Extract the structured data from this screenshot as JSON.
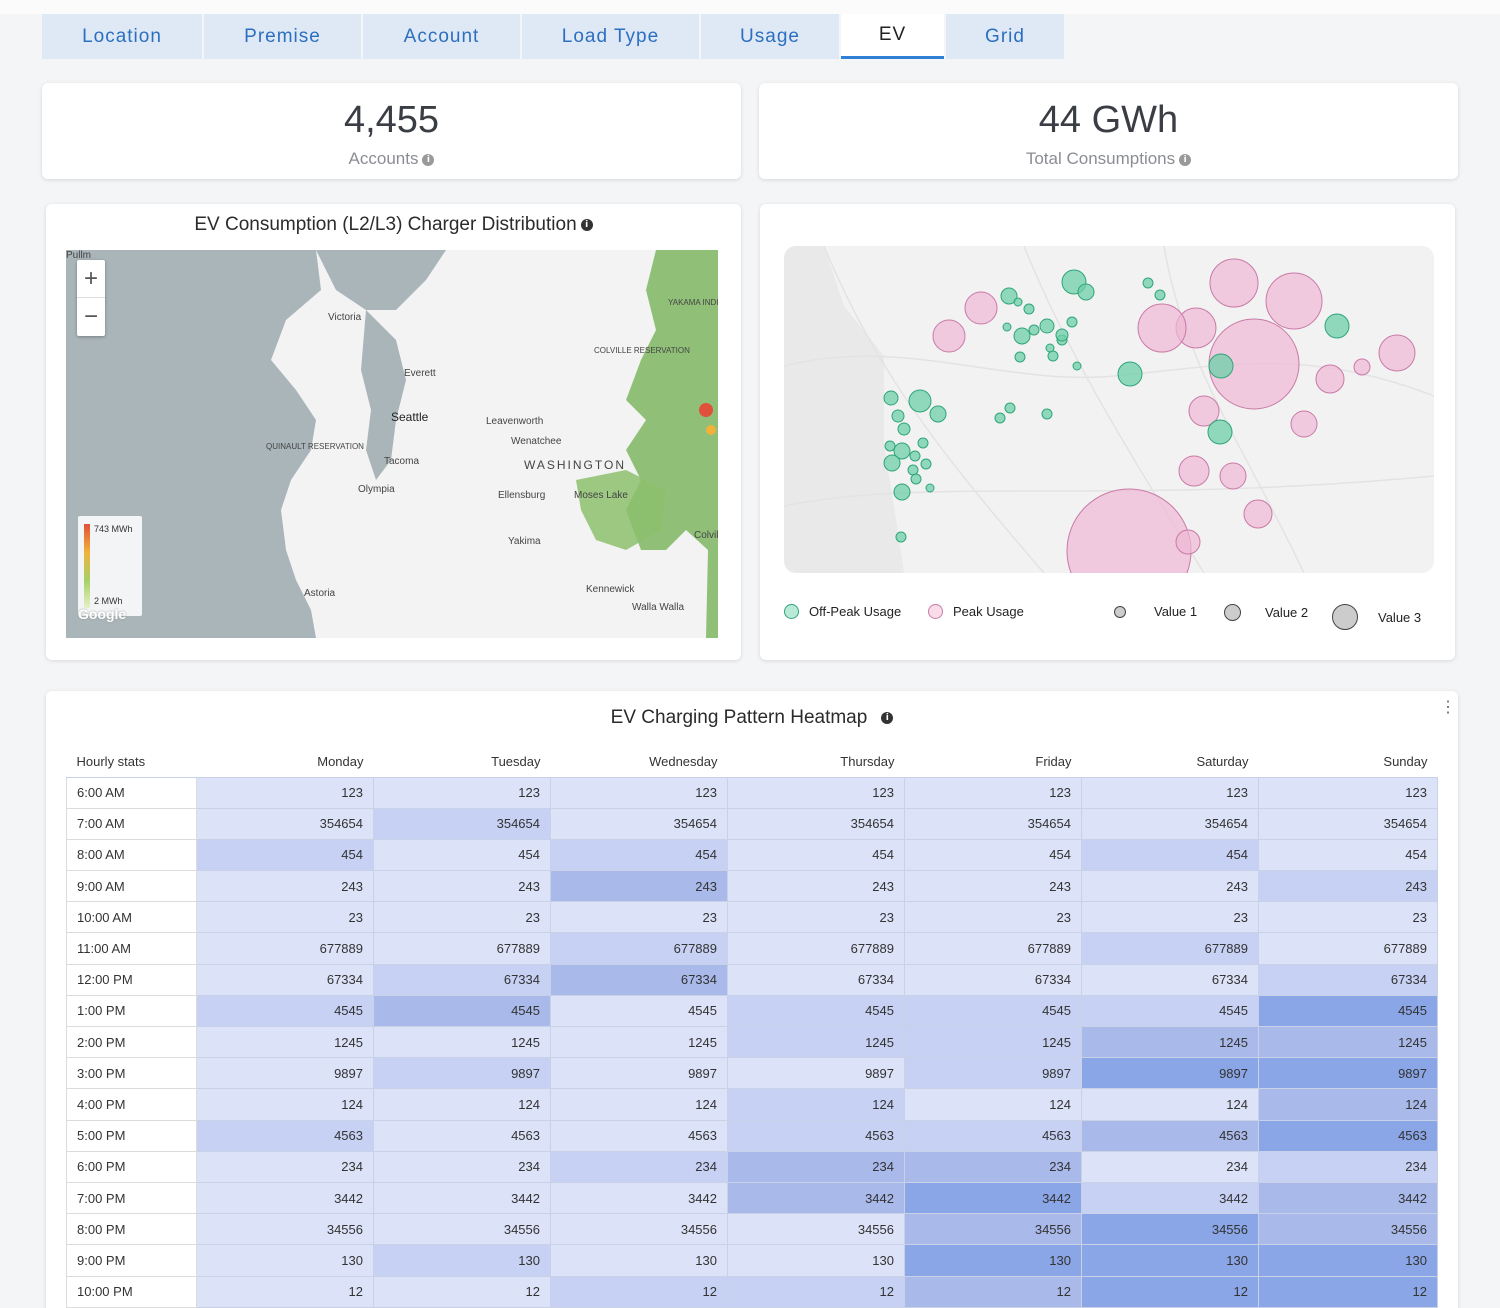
{
  "tabs": [
    {
      "label": "Location",
      "width": 160
    },
    {
      "label": "Premise",
      "width": 157
    },
    {
      "label": "Account",
      "width": 157
    },
    {
      "label": "Load Type",
      "width": 177
    },
    {
      "label": "Usage",
      "width": 138
    },
    {
      "label": "EV",
      "width": 103,
      "active": true
    },
    {
      "label": "Grid",
      "width": 118
    }
  ],
  "kpis": {
    "accounts": {
      "value": "4,455",
      "label": "Accounts"
    },
    "consumption": {
      "value": "44 GWh",
      "label": "Total Consumptions"
    }
  },
  "distribution": {
    "title": "EV Consumption (L2/L3) Charger Distribution",
    "legend_max": "743 MWh",
    "legend_min": "2 MWh",
    "attribution": "Google",
    "places": [
      "Victoria",
      "Everett",
      "Seattle",
      "Tacoma",
      "Olympia",
      "Leavenworth",
      "Wenatchee",
      "WASHINGTON",
      "Ellensburg",
      "Moses Lake",
      "Yakima",
      "Kennewick",
      "Walla Walla",
      "Astoria",
      "QUINAULT RESERVATION",
      "COLVILLE RESERVATION",
      "YAKAMA INDIAN RESERVATION",
      "Colville",
      "Pullm"
    ]
  },
  "bubbles": {
    "legend": {
      "offpeak": "Off-Peak Usage",
      "peak": "Peak Usage",
      "v1": "Value 1",
      "v2": "Value 2",
      "v3": "Value 3"
    },
    "colors": {
      "offpeak": "#6fcfa8",
      "offpeak_stroke": "#2ea57a",
      "peak": "#f0b8d6",
      "peak_stroke": "#c97aa6"
    }
  },
  "heatmap": {
    "title": "EV Charging Pattern Heatmap",
    "corner": "Hourly stats",
    "days": [
      "Monday",
      "Tuesday",
      "Wednesday",
      "Thursday",
      "Friday",
      "Saturday",
      "Sunday"
    ],
    "rows": [
      {
        "hour": "6:00 AM",
        "values": [
          123,
          123,
          123,
          123,
          123,
          123,
          123
        ],
        "levels": [
          1,
          1,
          1,
          1,
          1,
          1,
          1
        ]
      },
      {
        "hour": "7:00 AM",
        "values": [
          354654,
          354654,
          354654,
          354654,
          354654,
          354654,
          354654
        ],
        "levels": [
          1,
          2,
          1,
          1,
          1,
          1,
          1
        ]
      },
      {
        "hour": "8:00 AM",
        "values": [
          454,
          454,
          454,
          454,
          454,
          454,
          454
        ],
        "levels": [
          2,
          1,
          2,
          1,
          1,
          2,
          1
        ]
      },
      {
        "hour": "9:00 AM",
        "values": [
          243,
          243,
          243,
          243,
          243,
          243,
          243
        ],
        "levels": [
          1,
          1,
          3,
          1,
          1,
          1,
          2
        ]
      },
      {
        "hour": "10:00 AM",
        "values": [
          23,
          23,
          23,
          23,
          23,
          23,
          23
        ],
        "levels": [
          1,
          1,
          1,
          1,
          1,
          1,
          1
        ]
      },
      {
        "hour": "11:00 AM",
        "values": [
          677889,
          677889,
          677889,
          677889,
          677889,
          677889,
          677889
        ],
        "levels": [
          1,
          1,
          2,
          1,
          1,
          2,
          1
        ]
      },
      {
        "hour": "12:00 PM",
        "values": [
          67334,
          67334,
          67334,
          67334,
          67334,
          67334,
          67334
        ],
        "levels": [
          1,
          2,
          3,
          1,
          1,
          1,
          2
        ]
      },
      {
        "hour": "1:00 PM",
        "values": [
          4545,
          4545,
          4545,
          4545,
          4545,
          4545,
          4545
        ],
        "levels": [
          2,
          3,
          1,
          2,
          2,
          2,
          4
        ]
      },
      {
        "hour": "2:00 PM",
        "values": [
          1245,
          1245,
          1245,
          1245,
          1245,
          1245,
          1245
        ],
        "levels": [
          1,
          1,
          1,
          2,
          2,
          3,
          3
        ]
      },
      {
        "hour": "3:00 PM",
        "values": [
          9897,
          9897,
          9897,
          9897,
          9897,
          9897,
          9897
        ],
        "levels": [
          1,
          2,
          1,
          1,
          2,
          4,
          4
        ]
      },
      {
        "hour": "4:00 PM",
        "values": [
          124,
          124,
          124,
          124,
          124,
          124,
          124
        ],
        "levels": [
          1,
          1,
          1,
          2,
          1,
          1,
          3
        ]
      },
      {
        "hour": "5:00 PM",
        "values": [
          4563,
          4563,
          4563,
          4563,
          4563,
          4563,
          4563
        ],
        "levels": [
          2,
          1,
          1,
          2,
          2,
          3,
          4
        ]
      },
      {
        "hour": "6:00 PM",
        "values": [
          234,
          234,
          234,
          234,
          234,
          234,
          234
        ],
        "levels": [
          1,
          1,
          2,
          3,
          3,
          1,
          2
        ]
      },
      {
        "hour": "7:00 PM",
        "values": [
          3442,
          3442,
          3442,
          3442,
          3442,
          3442,
          3442
        ],
        "levels": [
          1,
          1,
          1,
          3,
          4,
          2,
          3
        ]
      },
      {
        "hour": "8:00 PM",
        "values": [
          34556,
          34556,
          34556,
          34556,
          34556,
          34556,
          34556
        ],
        "levels": [
          1,
          1,
          1,
          1,
          3,
          4,
          3
        ]
      },
      {
        "hour": "9:00 PM",
        "values": [
          130,
          130,
          130,
          130,
          130,
          130,
          130
        ],
        "levels": [
          1,
          2,
          1,
          1,
          4,
          4,
          4
        ]
      },
      {
        "hour": "10:00 PM",
        "values": [
          12,
          12,
          12,
          12,
          12,
          12,
          12
        ],
        "levels": [
          1,
          1,
          2,
          2,
          3,
          4,
          4
        ]
      }
    ],
    "level_colors": [
      "#ffffff",
      "#dce3f8",
      "#c6d1f4",
      "#a9b9ea",
      "#8aa6e6"
    ]
  }
}
